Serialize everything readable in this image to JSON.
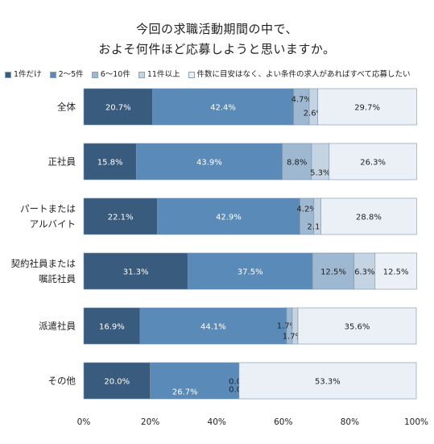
{
  "title_lines": [
    "今回の求職活動期間の中で、",
    "およそ何件ほど応募しようと思いますか。"
  ],
  "colors": [
    "#385b7e",
    "#5a8ab8",
    "#9eb8d2",
    "#c5d4e3",
    "#eaf0f6"
  ],
  "chart_data": {
    "type": "bar",
    "orientation": "horizontal",
    "stacked": true,
    "percent": true,
    "categories": [
      [
        "全体"
      ],
      [
        "正社員"
      ],
      [
        "パートまたは",
        "アルバイト"
      ],
      [
        "契約社員または",
        "嘱託社員"
      ],
      [
        "派遣社員"
      ],
      [
        "その他"
      ]
    ],
    "series": [
      {
        "name": "1件だけ",
        "values": [
          20.7,
          15.8,
          22.1,
          31.3,
          16.9,
          20.0
        ]
      },
      {
        "name": "2～5件",
        "values": [
          42.4,
          43.9,
          42.9,
          37.5,
          44.1,
          26.7
        ]
      },
      {
        "name": "6～10件",
        "values": [
          4.7,
          8.8,
          4.2,
          12.5,
          1.7,
          0.0
        ]
      },
      {
        "name": "11件以上",
        "values": [
          2.6,
          5.3,
          2.1,
          6.3,
          1.7,
          0.0
        ]
      },
      {
        "name": "件数に目安はなく、よい条件の求人があればすべて応募したい",
        "values": [
          29.7,
          26.3,
          28.8,
          12.5,
          35.6,
          53.3
        ]
      }
    ],
    "data_labels": [
      [
        "20.7%",
        "42.4%",
        "4.7%",
        "2.6%",
        "29.7%"
      ],
      [
        "15.8%",
        "43.9%",
        "8.8%",
        "5.3%",
        "26.3%"
      ],
      [
        "22.1%",
        "42.9%",
        "4.2%",
        "2.1%",
        "28.8%"
      ],
      [
        "31.3%",
        "37.5%",
        "12.5%",
        "6.3%",
        "12.5%"
      ],
      [
        "16.9%",
        "44.1%",
        "1.7%",
        "1.7%",
        "35.6%"
      ],
      [
        "20.0%",
        "26.7%",
        "0.0%",
        "0.0%",
        "53.3%"
      ]
    ],
    "xlim": [
      0,
      100
    ],
    "xticks": [
      "0%",
      "20%",
      "40%",
      "60%",
      "80%",
      "100%"
    ],
    "legend_position": "top",
    "grid": false
  }
}
